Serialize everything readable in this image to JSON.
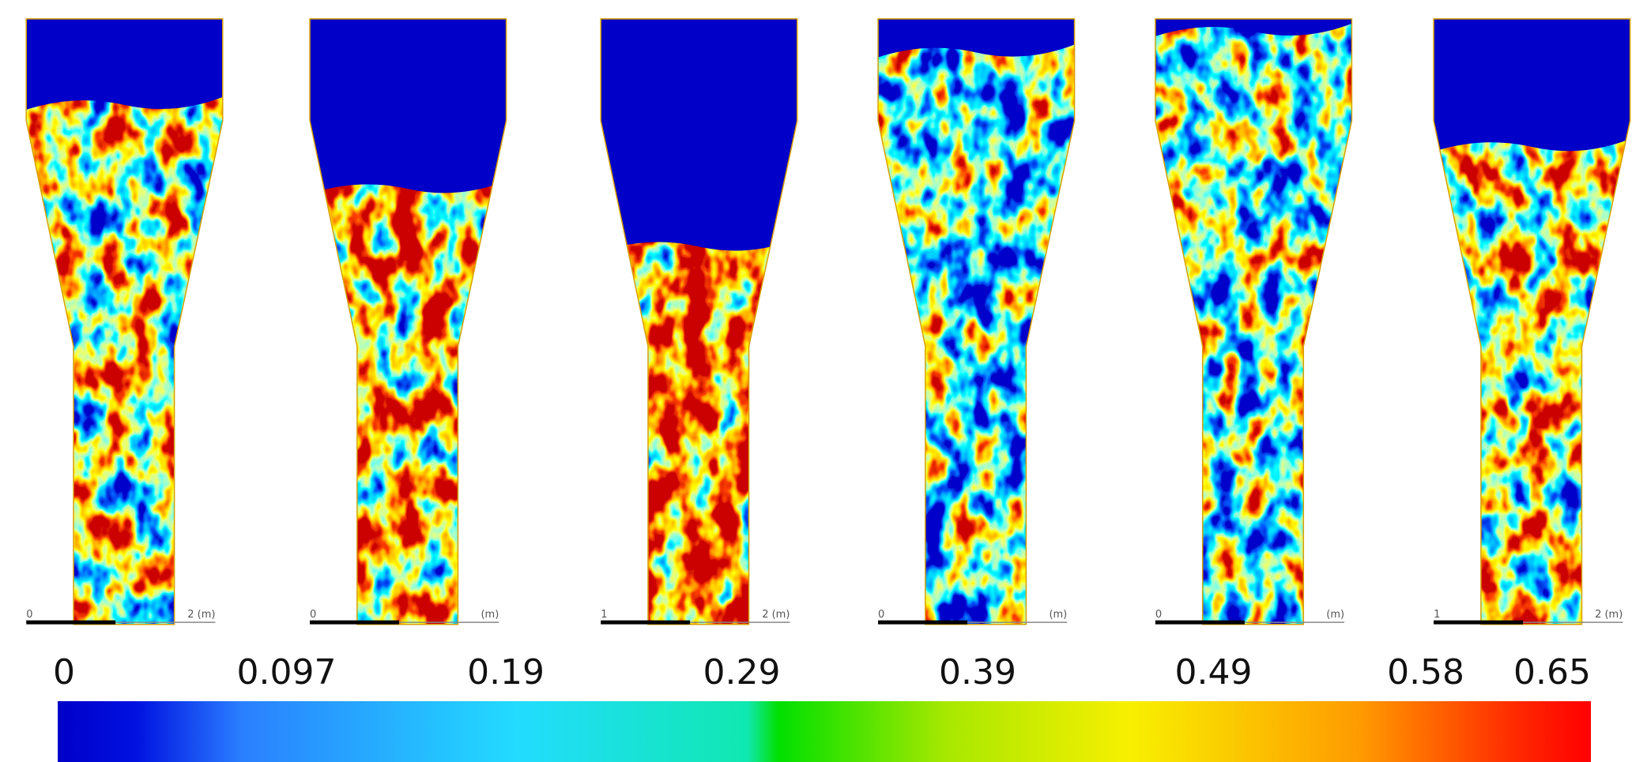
{
  "panels": [
    {
      "scale_labels": [
        "0",
        "2 (m)"
      ]
    },
    {
      "scale_labels": [
        "0",
        "(m)"
      ]
    },
    {
      "scale_labels": [
        "1",
        "2 (m)"
      ]
    },
    {
      "scale_labels": [
        "0",
        "(m)"
      ]
    },
    {
      "scale_labels": [
        "0",
        "(m)"
      ]
    },
    {
      "scale_labels": [
        "1",
        "2 (m)"
      ]
    }
  ],
  "colorbar": {
    "ticks": [
      0,
      0.097,
      0.19,
      0.29,
      0.39,
      0.49,
      0.58,
      0.65
    ]
  }
}
